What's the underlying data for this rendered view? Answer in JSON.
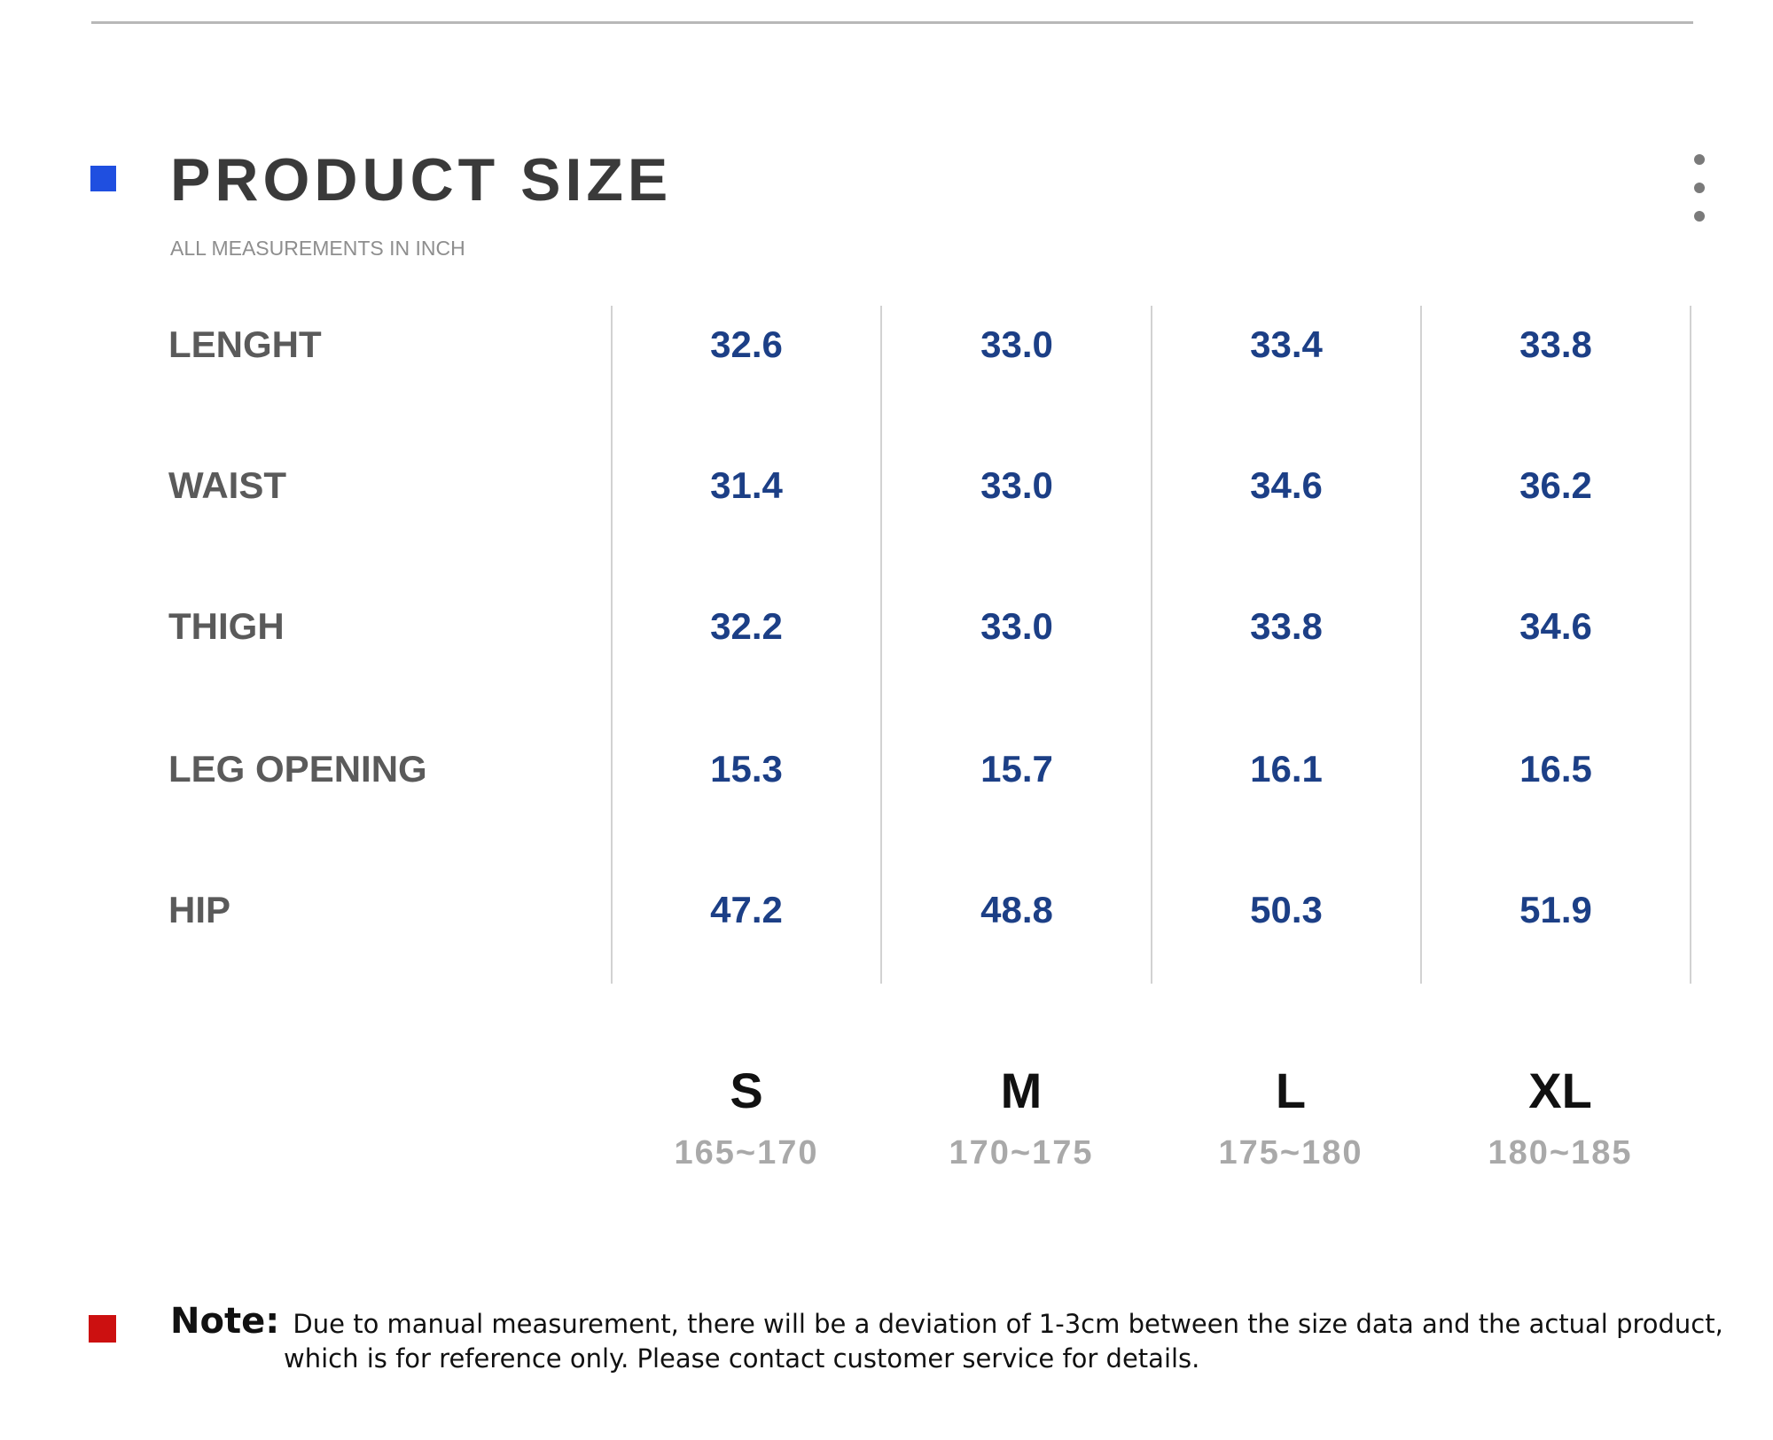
{
  "header": {
    "title": "PRODUCT SIZE",
    "subtitle": "ALL MEASUREMENTS IN INCH"
  },
  "table": {
    "rows": [
      {
        "label": "LENGHT",
        "values": [
          "32.6",
          "33.0",
          "33.4",
          "33.8"
        ]
      },
      {
        "label": "WAIST",
        "values": [
          "31.4",
          "33.0",
          "34.6",
          "36.2"
        ]
      },
      {
        "label": "THIGH",
        "values": [
          "32.2",
          "33.0",
          "33.8",
          "34.6"
        ]
      },
      {
        "label": "LEG OPENING",
        "values": [
          "15.3",
          "15.7",
          "16.1",
          "16.5"
        ]
      },
      {
        "label": "HIP",
        "values": [
          "47.2",
          "48.8",
          "50.3",
          "51.9"
        ]
      }
    ],
    "sizes": [
      {
        "name": "S",
        "range": "165~170"
      },
      {
        "name": "M",
        "range": "170~175"
      },
      {
        "name": "L",
        "range": "175~180"
      },
      {
        "name": "XL",
        "range": "180~185"
      }
    ]
  },
  "note": {
    "label": "Note:",
    "line1": "Due to manual measurement, there will be a deviation of 1-3cm between the size data and the actual product,",
    "line2": "which is for reference only. Please contact customer service for details."
  },
  "colors": {
    "title_marker": "#1f4fe0",
    "note_marker": "#cc1010",
    "value_text": "#1c3f86",
    "label_text": "#5a5a5a"
  },
  "icons": {
    "menu": "more-vertical-icon"
  }
}
